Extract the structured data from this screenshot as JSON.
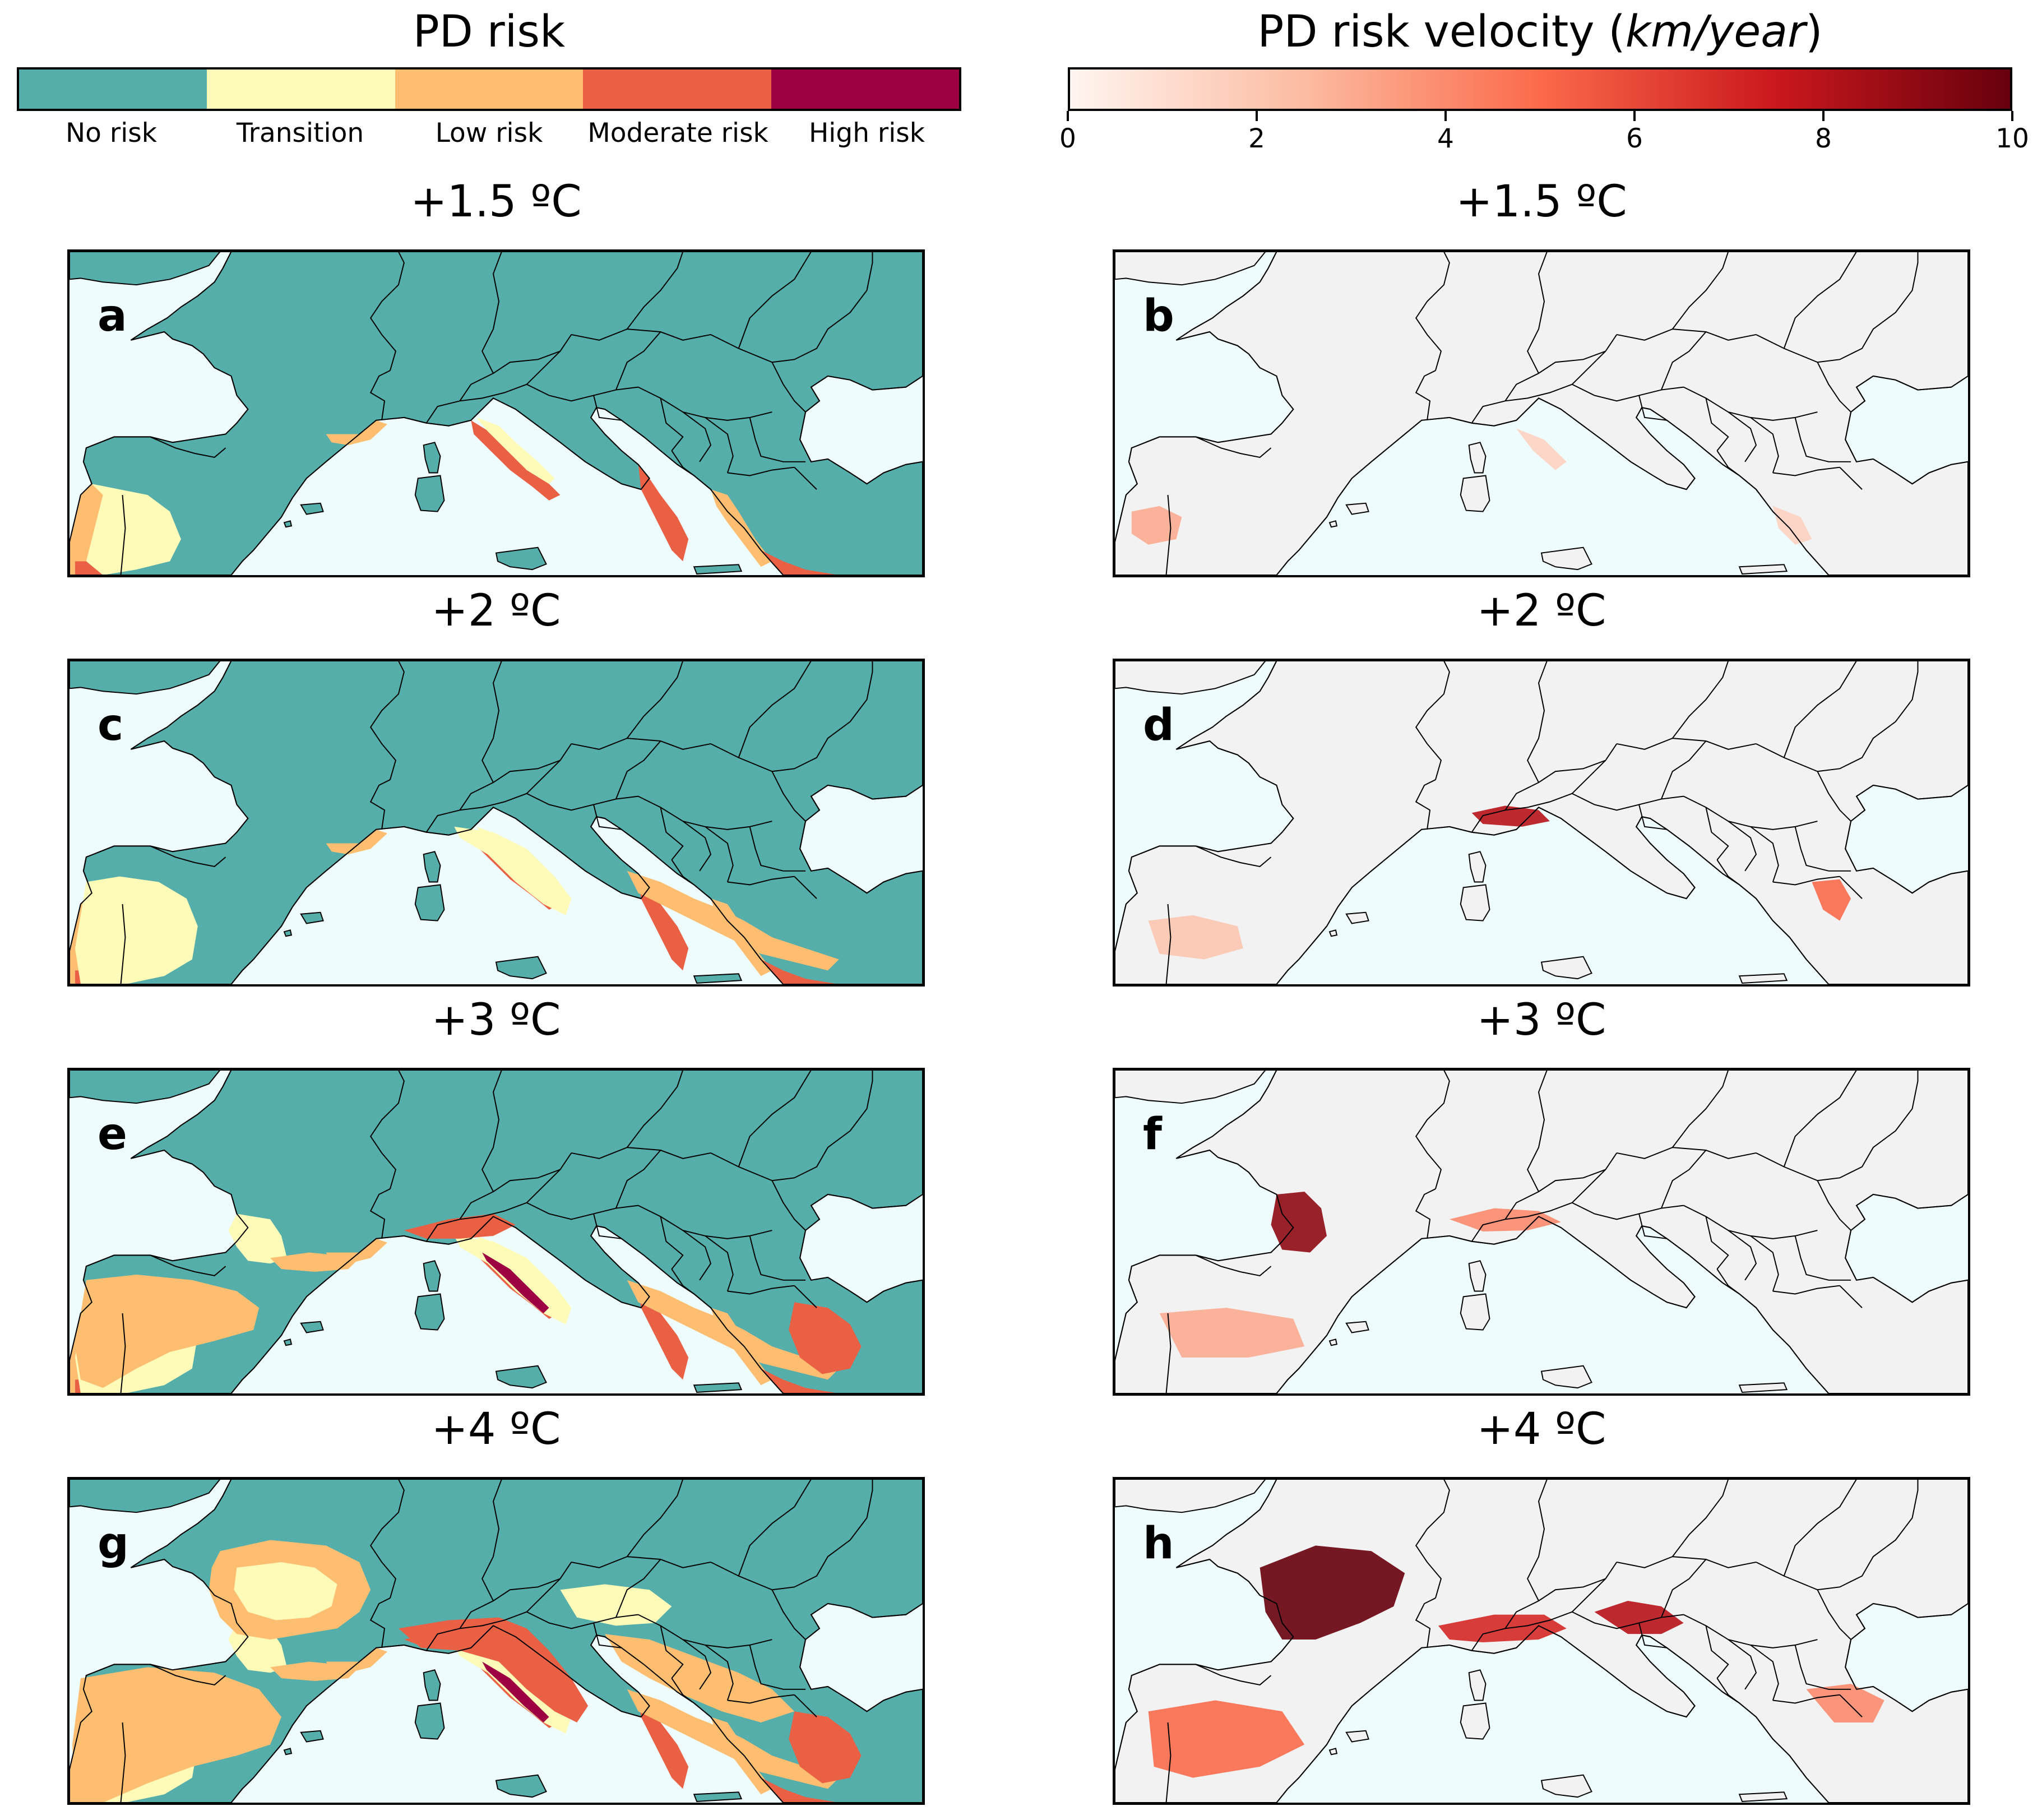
{
  "legend_left": {
    "title": "PD risk",
    "categories": [
      {
        "label": "No risk",
        "color": "#55aeaa"
      },
      {
        "label": "Transition",
        "color": "#fefbb8"
      },
      {
        "label": "Low risk",
        "color": "#fdbe71"
      },
      {
        "label": "Moderate risk",
        "color": "#ea6044"
      },
      {
        "label": "High risk",
        "color": "#9e0142"
      }
    ]
  },
  "legend_right": {
    "title": "PD risk velocity (",
    "title_unit": "km/year",
    "title_close": ")",
    "min": 0,
    "max": 10,
    "ticks": [
      "0",
      "2",
      "4",
      "6",
      "8",
      "10"
    ],
    "colors": [
      "#fff5f0",
      "#fcbba1",
      "#fb6a4a",
      "#cb181d",
      "#67000d"
    ]
  },
  "colors": {
    "sea": "#eefcfd",
    "land_velocity": "#f2f2f2",
    "border": "#000000"
  },
  "panels": [
    {
      "title": "+1.5 ºC",
      "letter": "a",
      "type": "risk",
      "level": 1
    },
    {
      "title": "+1.5 ºC",
      "letter": "b",
      "type": "velocity",
      "level": 1
    },
    {
      "title": "+2 ºC",
      "letter": "c",
      "type": "risk",
      "level": 2
    },
    {
      "title": "+2 ºC",
      "letter": "d",
      "type": "velocity",
      "level": 2
    },
    {
      "title": "+3 ºC",
      "letter": "e",
      "type": "risk",
      "level": 3
    },
    {
      "title": "+3 ºC",
      "letter": "f",
      "type": "velocity",
      "level": 3
    },
    {
      "title": "+4 ºC",
      "letter": "g",
      "type": "risk",
      "level": 4
    },
    {
      "title": "+4 ºC",
      "letter": "h",
      "type": "velocity",
      "level": 4
    }
  ]
}
